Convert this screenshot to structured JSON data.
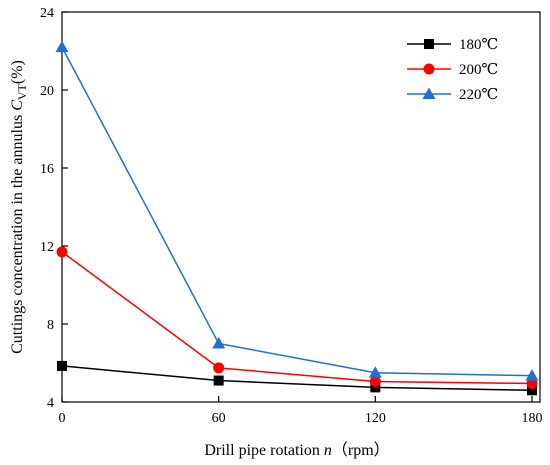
{
  "chart_data": {
    "type": "line",
    "title": "",
    "xlabel": "Drill pipe rotation n（rpm）",
    "ylabel": "Cuttings concentration in the annulus C_VT(%)",
    "ylabel_parts": {
      "prefix": "Cuttings concentration in the annulus ",
      "symbol": "C",
      "subscript": "VT",
      "suffix": "(%)"
    },
    "xlabel_parts": {
      "prefix": "Drill pipe rotation ",
      "symbol": "n",
      "suffix": "（rpm）"
    },
    "x": [
      0,
      60,
      120,
      180
    ],
    "xticks": [
      0,
      60,
      120,
      180
    ],
    "yticks": [
      4,
      8,
      12,
      16,
      20,
      24
    ],
    "xlim": [
      0,
      180
    ],
    "ylim": [
      4,
      24
    ],
    "grid": false,
    "legend_position": "top-right",
    "series": [
      {
        "name": "180℃",
        "color": "#000000",
        "marker": "square",
        "values": [
          5.85,
          5.1,
          4.75,
          4.6
        ]
      },
      {
        "name": "200℃",
        "color": "#ff0000",
        "marker": "circle",
        "values": [
          11.7,
          5.75,
          5.05,
          4.95
        ]
      },
      {
        "name": "220℃",
        "color": "#1f6fd6",
        "marker": "triangle",
        "values": [
          22.2,
          7.0,
          5.5,
          5.35
        ]
      }
    ]
  }
}
